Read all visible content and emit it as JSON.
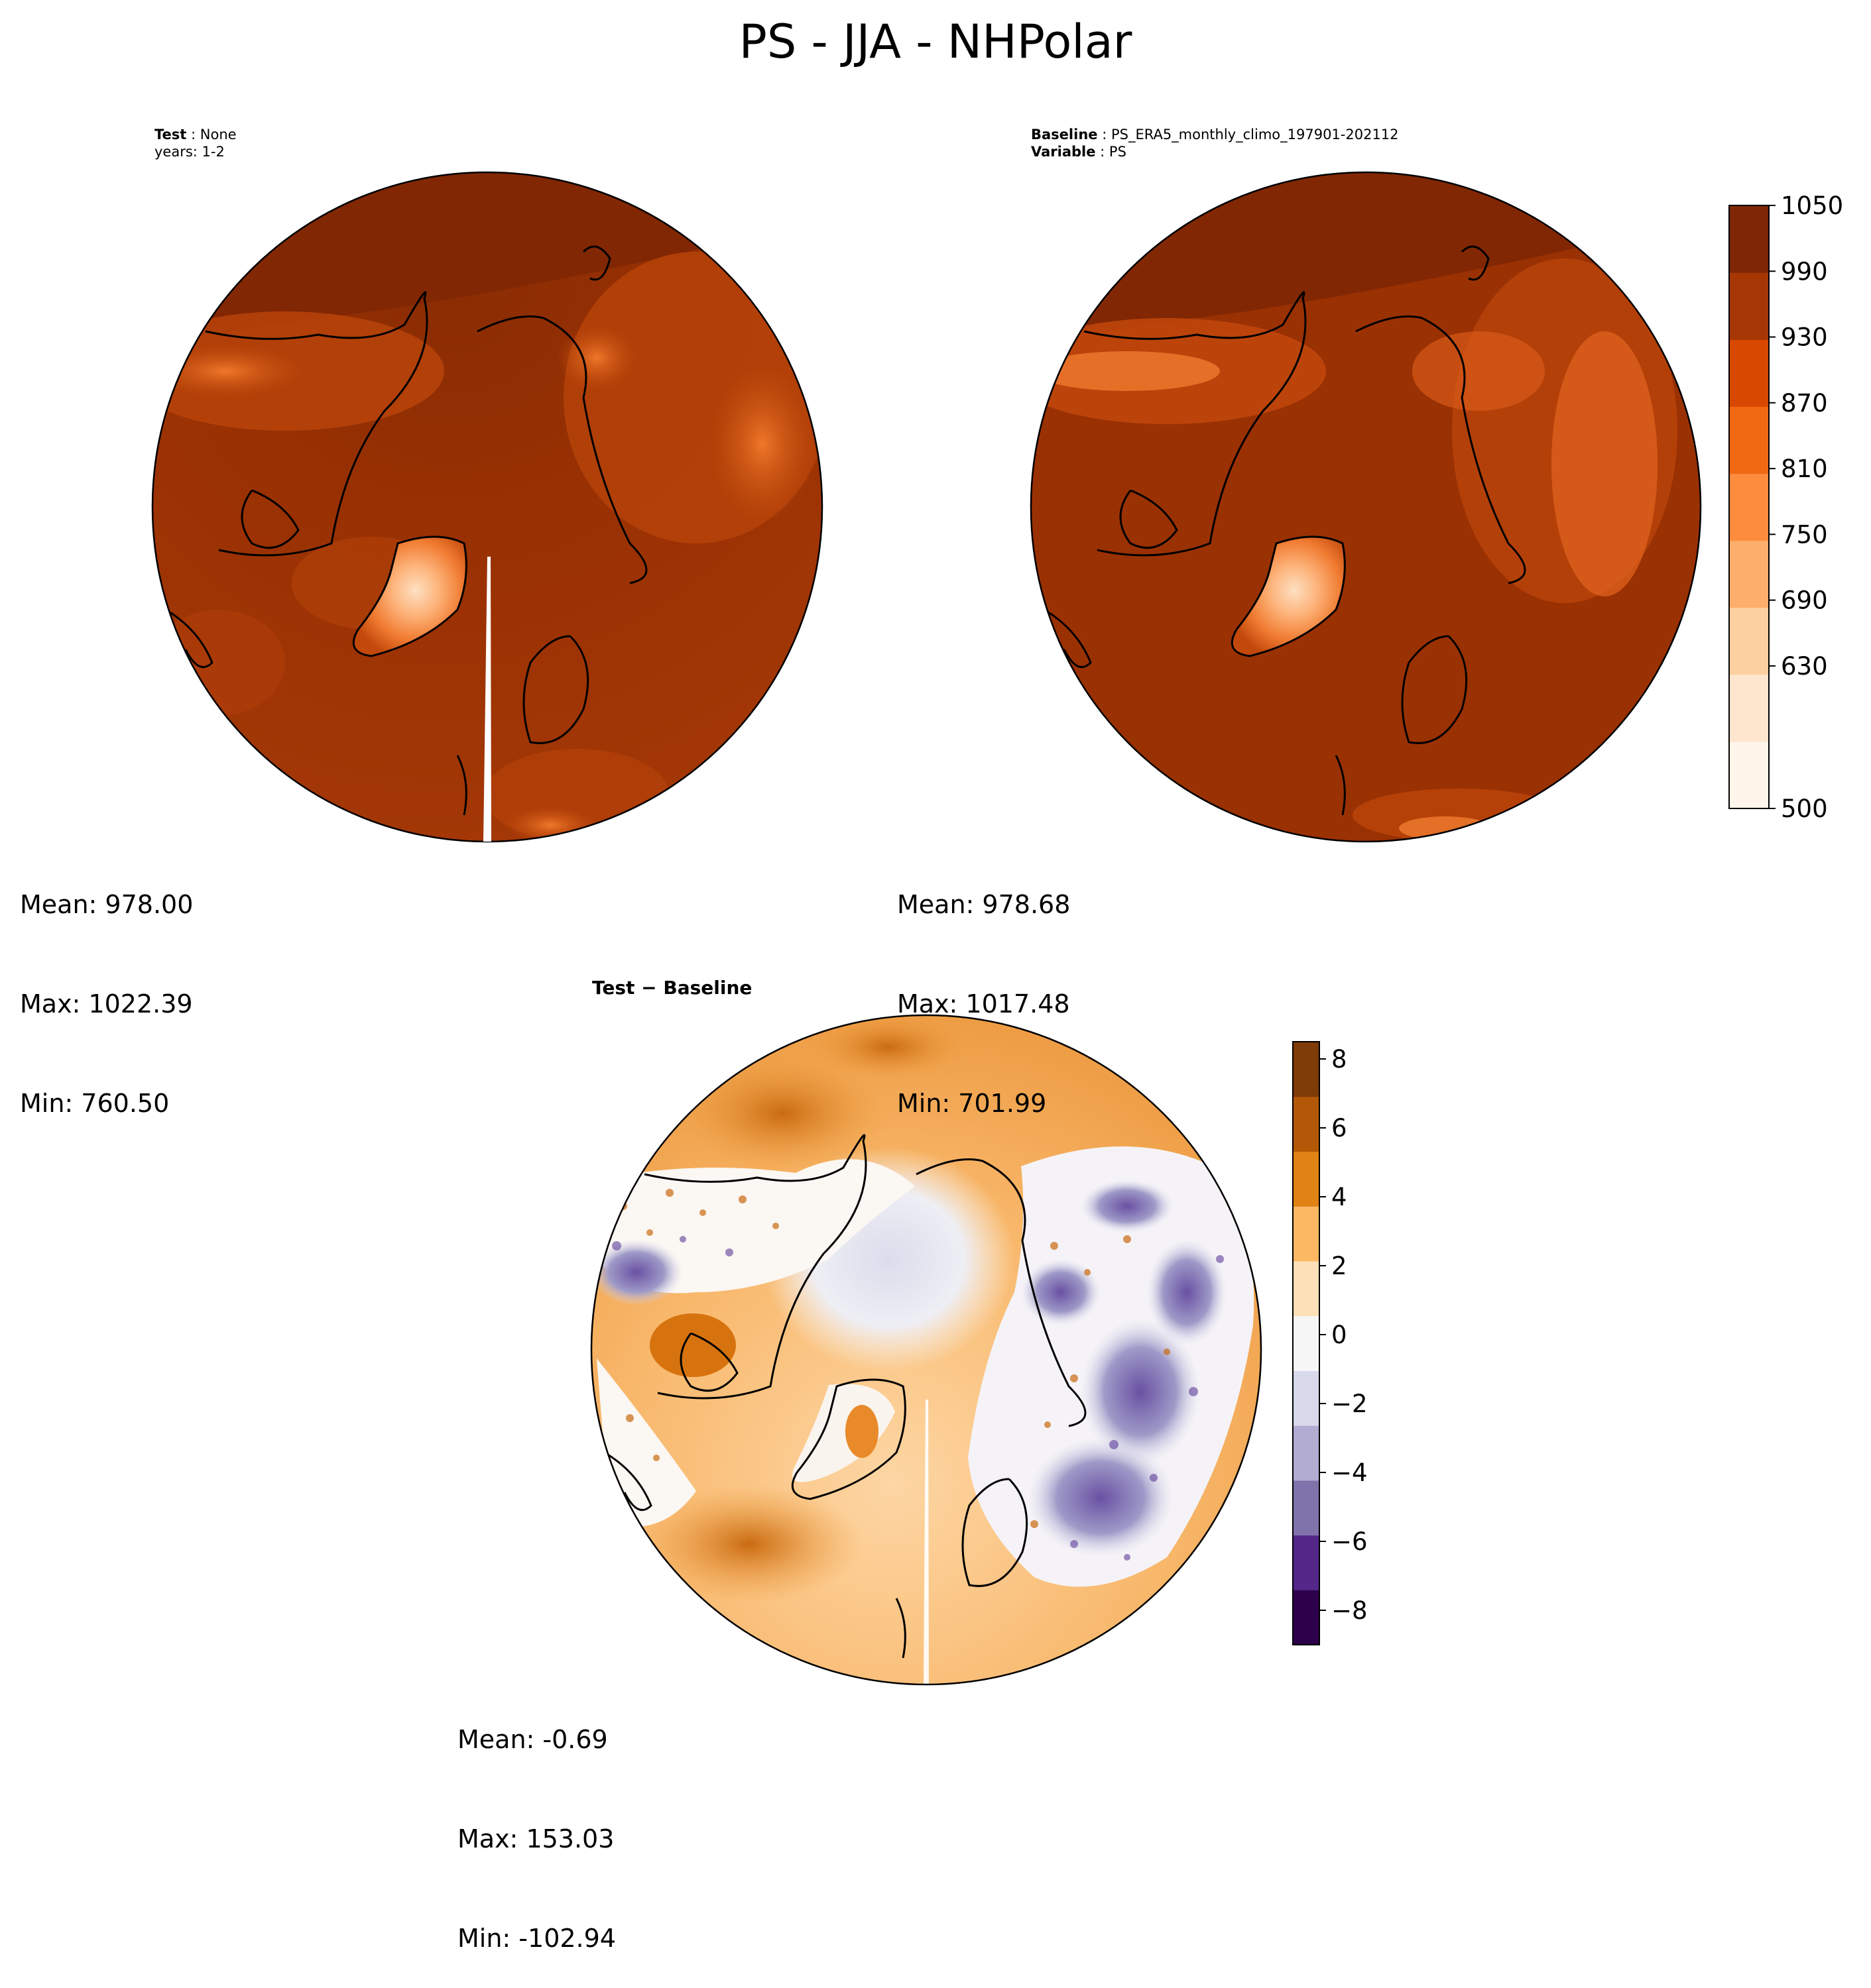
{
  "figure": {
    "title": "PS - JJA - NHPolar"
  },
  "panels": {
    "test": {
      "label_key": "Test",
      "label_value": "None",
      "years_line": "years: 1-2",
      "stats": {
        "mean": "Mean: 978.00",
        "max": "Max: 1022.39",
        "min": "Min: 760.50"
      }
    },
    "baseline": {
      "label_key": "Baseline",
      "label_value": "PS_ERA5_monthly_climo_197901-202112",
      "variable_key": "Variable",
      "variable_value": "PS",
      "stats": {
        "mean": "Mean: 978.68",
        "max": "Max: 1017.48",
        "min": "Min: 701.99"
      }
    },
    "diff": {
      "title_left": "Test",
      "title_sep": " − ",
      "title_right": "Baseline",
      "stats": {
        "mean": "Mean: -0.69",
        "max": "Max: 153.03",
        "min": "Min: -102.94"
      }
    }
  },
  "chart_data": [
    {
      "type": "heatmap",
      "projection": "north-polar-stereographic",
      "panel": "test",
      "variable": "PS",
      "season": "JJA",
      "mean": 978.0,
      "max": 1022.39,
      "min": 760.5
    },
    {
      "type": "heatmap",
      "projection": "north-polar-stereographic",
      "panel": "baseline",
      "variable": "PS",
      "season": "JJA",
      "mean": 978.68,
      "max": 1017.48,
      "min": 701.99
    },
    {
      "type": "heatmap",
      "projection": "north-polar-stereographic",
      "panel": "test-minus-baseline",
      "mean": -0.69,
      "max": 153.03,
      "min": -102.94
    }
  ],
  "colorbars": {
    "main": {
      "range": [
        500,
        1050
      ],
      "ticks": [
        {
          "value": 1050,
          "label": "1050"
        },
        {
          "value": 990,
          "label": "990"
        },
        {
          "value": 930,
          "label": "930"
        },
        {
          "value": 870,
          "label": "870"
        },
        {
          "value": 810,
          "label": "810"
        },
        {
          "value": 750,
          "label": "750"
        },
        {
          "value": 690,
          "label": "690"
        },
        {
          "value": 630,
          "label": "630"
        },
        {
          "value": 500,
          "label": "500"
        }
      ],
      "palette": [
        "#fff5eb",
        "#fee6ce",
        "#fdd0a2",
        "#fdae6b",
        "#fd8d3c",
        "#f16913",
        "#d94801",
        "#a63603",
        "#7f2704"
      ]
    },
    "diff": {
      "range": [
        -9,
        8.5
      ],
      "ticks": [
        {
          "value": 8,
          "label": "8"
        },
        {
          "value": 6,
          "label": "6"
        },
        {
          "value": 4,
          "label": "4"
        },
        {
          "value": 2,
          "label": "2"
        },
        {
          "value": 0,
          "label": "0"
        },
        {
          "value": -2,
          "label": "−2"
        },
        {
          "value": -4,
          "label": "−4"
        },
        {
          "value": -6,
          "label": "−6"
        },
        {
          "value": -8,
          "label": "−8"
        }
      ],
      "palette": [
        "#2d004b",
        "#542788",
        "#8073ac",
        "#b2abd2",
        "#d8daeb",
        "#f7f7f7",
        "#fee0b6",
        "#fdb863",
        "#e08214",
        "#b35806",
        "#7f3b08"
      ]
    }
  },
  "colors": {
    "ps_base": "#9a3103",
    "ps_dark": "#7f2704",
    "ps_mid": "#b8430a",
    "ps_light": "#e0621d",
    "greenland_core": "#fdc99a"
  }
}
